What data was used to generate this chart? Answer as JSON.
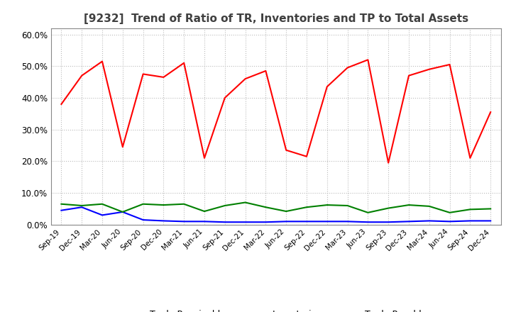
{
  "title": "[9232]  Trend of Ratio of TR, Inventories and TP to Total Assets",
  "x_labels": [
    "Sep-19",
    "Dec-19",
    "Mar-20",
    "Jun-20",
    "Sep-20",
    "Dec-20",
    "Mar-21",
    "Jun-21",
    "Sep-21",
    "Dec-21",
    "Mar-22",
    "Jun-22",
    "Sep-22",
    "Dec-22",
    "Mar-23",
    "Jun-23",
    "Sep-23",
    "Dec-23",
    "Mar-24",
    "Jun-24",
    "Sep-24",
    "Dec-24"
  ],
  "trade_receivables": [
    0.38,
    0.47,
    0.515,
    0.245,
    0.475,
    0.465,
    0.51,
    0.21,
    0.4,
    0.46,
    0.485,
    0.235,
    0.215,
    0.435,
    0.495,
    0.52,
    0.195,
    0.47,
    0.49,
    0.505,
    0.21,
    0.355
  ],
  "inventories": [
    0.045,
    0.055,
    0.03,
    0.04,
    0.015,
    0.012,
    0.01,
    0.01,
    0.008,
    0.008,
    0.008,
    0.01,
    0.01,
    0.01,
    0.01,
    0.008,
    0.008,
    0.01,
    0.012,
    0.01,
    0.012,
    0.012
  ],
  "trade_payables": [
    0.065,
    0.06,
    0.065,
    0.04,
    0.065,
    0.062,
    0.065,
    0.042,
    0.06,
    0.07,
    0.055,
    0.042,
    0.055,
    0.062,
    0.06,
    0.038,
    0.052,
    0.062,
    0.058,
    0.038,
    0.048,
    0.05
  ],
  "tr_color": "#ff0000",
  "inv_color": "#0000ff",
  "tp_color": "#008000",
  "bg_color": "#ffffff",
  "grid_color": "#bbbbbb",
  "title_color": "#404040",
  "ylim": [
    0.0,
    0.62
  ],
  "yticks": [
    0.0,
    0.1,
    0.2,
    0.3,
    0.4,
    0.5,
    0.6
  ]
}
